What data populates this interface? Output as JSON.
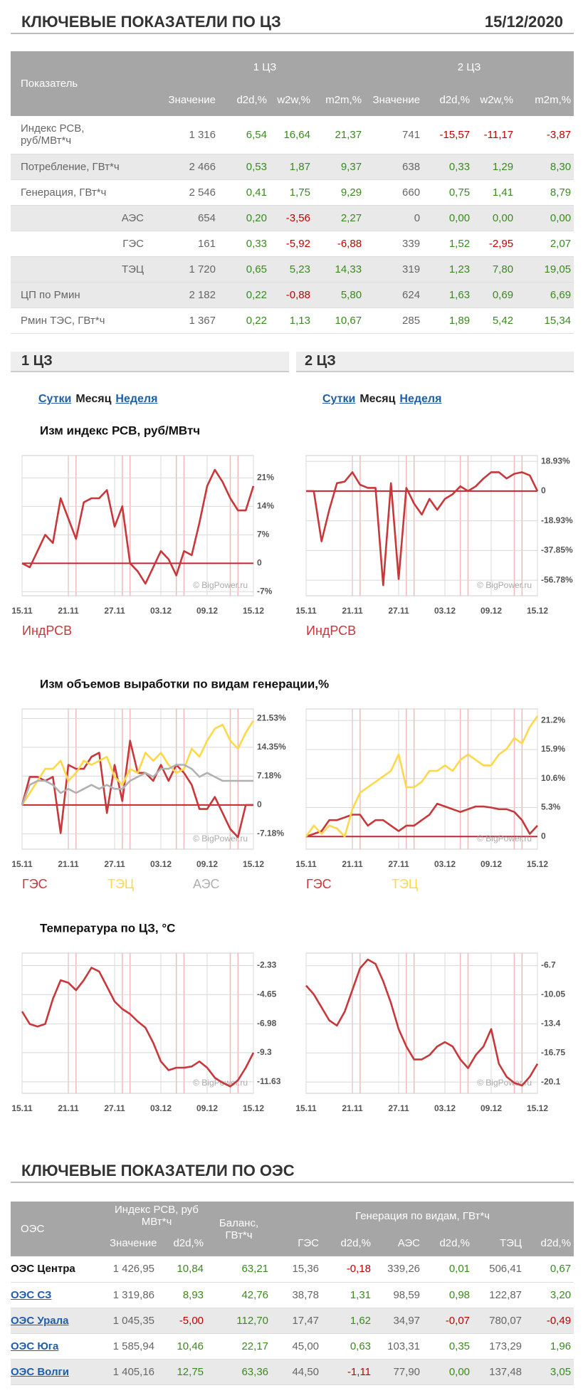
{
  "header": {
    "title": "КЛЮЧЕВЫЕ ПОКАЗАТЕЛИ ПО ЦЗ",
    "date": "15/12/2020"
  },
  "table1": {
    "top": [
      "Показатель",
      "1 ЦЗ",
      "2 ЦЗ"
    ],
    "columns": [
      "Значение",
      "d2d,%",
      "w2w,%",
      "m2m,%",
      "Значение",
      "d2d,%",
      "w2w,%",
      "m2m,%"
    ],
    "rows": [
      {
        "label": "Индекс РСВ,\nруб/МВт*ч",
        "values": [
          "1 316",
          "6,54",
          "16,64",
          "21,37",
          "741",
          "-15,57",
          "-11,17",
          "-3,87"
        ]
      },
      {
        "label": "Потребление, ГВт*ч",
        "values": [
          "2 466",
          "0,53",
          "1,87",
          "9,37",
          "638",
          "0,33",
          "1,29",
          "8,30"
        ]
      },
      {
        "label": "Генерация, ГВт*ч",
        "values": [
          "2 546",
          "0,41",
          "1,75",
          "9,29",
          "660",
          "0,75",
          "1,41",
          "8,79"
        ]
      },
      {
        "label": "АЭС",
        "sub": true,
        "values": [
          "654",
          "0,20",
          "-3,56",
          "2,27",
          "0",
          "0,00",
          "0,00",
          "0,00"
        ]
      },
      {
        "label": "ГЭС",
        "sub": true,
        "values": [
          "161",
          "0,33",
          "-5,92",
          "-6,88",
          "339",
          "1,52",
          "-2,95",
          "2,07"
        ]
      },
      {
        "label": "ТЭЦ",
        "sub": true,
        "values": [
          "1 720",
          "0,65",
          "5,23",
          "14,33",
          "319",
          "1,23",
          "7,80",
          "19,05"
        ]
      },
      {
        "label": "ЦП по Рмин",
        "values": [
          "2 182",
          "0,22",
          "-0,88",
          "5,80",
          "624",
          "1,63",
          "0,69",
          "6,69"
        ]
      },
      {
        "label": "Рмин ТЭС, ГВт*ч",
        "values": [
          "1 367",
          "0,22",
          "1,13",
          "10,67",
          "285",
          "1,89",
          "5,42",
          "15,34"
        ]
      }
    ]
  },
  "zones": [
    {
      "title": "1 ЦЗ",
      "tabs": [
        "Сутки",
        "Месяц",
        "Неделя"
      ]
    },
    {
      "title": "2 ЦЗ",
      "tabs": [
        "Сутки",
        "Месяц",
        "Неделя"
      ]
    }
  ],
  "chart_sections": [
    "Изм индекс РСВ, руб/МВтч",
    "Изм объемов выработки по видам генерации,%",
    "Температура по ЦЗ, °C"
  ],
  "chart_data": [
    {
      "type": "line",
      "watermark": "© BigPower.ru",
      "zero_line_color": "#c0282d",
      "categories": [
        "15.11",
        null,
        null,
        null,
        null,
        null,
        "21.11",
        null,
        null,
        null,
        null,
        null,
        "27.11",
        null,
        null,
        null,
        null,
        null,
        "03.12",
        null,
        null,
        null,
        null,
        null,
        "09.12",
        null,
        null,
        null,
        null,
        null,
        "15.12"
      ],
      "series": [
        {
          "name": "ИндРСВ",
          "color": "#c8373a",
          "values": [
            0,
            -1,
            3,
            7,
            5,
            16,
            11,
            6,
            15,
            16,
            16,
            18,
            9,
            14,
            0,
            -2,
            -5,
            -1,
            3,
            1,
            -3,
            3,
            2,
            10,
            19,
            23,
            20,
            16,
            13,
            13,
            19
          ]
        }
      ],
      "ylim": [
        -8,
        26.5
      ],
      "yticks": [
        {
          "value": 21,
          "label": "21%"
        },
        {
          "value": 14,
          "label": "14%"
        },
        {
          "value": 7,
          "label": "7%"
        },
        0,
        {
          "value": -7,
          "label": "-7%"
        }
      ]
    },
    {
      "type": "line",
      "watermark": "© BigPower.ru",
      "zero_line_color": "#c0282d",
      "categories": [
        "15.11",
        null,
        null,
        null,
        null,
        null,
        "21.11",
        null,
        null,
        null,
        null,
        null,
        "27.11",
        null,
        null,
        null,
        null,
        null,
        "03.12",
        null,
        null,
        null,
        null,
        null,
        "09.12",
        null,
        null,
        null,
        null,
        null,
        "15.12"
      ],
      "series": [
        {
          "name": "ИндРСВ",
          "color": "#c8373a",
          "values": [
            0,
            0,
            -32,
            -12,
            5,
            6,
            12,
            4,
            2,
            2,
            -60,
            5,
            -56,
            2,
            -8,
            -15,
            -5,
            -12,
            -5,
            -2,
            3,
            0,
            3,
            8,
            12,
            12,
            8,
            11,
            12,
            10,
            0
          ]
        }
      ],
      "ylim": [
        -66.7,
        22.6
      ],
      "yticks": [
        {
          "value": 18.93,
          "label": "18.93%"
        },
        0,
        {
          "value": -18.93,
          "label": "-18.93%"
        },
        {
          "value": -37.85,
          "label": "-37.85%"
        },
        {
          "value": -56.78,
          "label": "-56.78%"
        }
      ]
    },
    {
      "type": "line",
      "watermark": "© BigPower.ru",
      "zero_line_color": "#c0282d",
      "categories": [
        "15.11",
        null,
        null,
        null,
        null,
        null,
        "21.11",
        null,
        null,
        null,
        null,
        null,
        "27.11",
        null,
        null,
        null,
        null,
        null,
        "03.12",
        null,
        null,
        null,
        null,
        null,
        "09.12",
        null,
        null,
        null,
        null,
        null,
        "15.12"
      ],
      "series": [
        {
          "name": "ГЭС",
          "color": "#c8373a",
          "values": [
            0,
            7,
            7,
            6,
            7,
            -7,
            10,
            9,
            9,
            12,
            13,
            -2,
            10,
            1,
            16,
            8,
            8,
            6,
            10,
            6,
            10,
            8,
            5,
            -1,
            -1,
            2,
            -2,
            -6,
            -8,
            0,
            0
          ]
        },
        {
          "name": "ТЭЦ",
          "color": "#ffd84a",
          "values": [
            0,
            3,
            6,
            9,
            9,
            11,
            6,
            8,
            11,
            10,
            11,
            12,
            7,
            5,
            9,
            8,
            13,
            11,
            13,
            10,
            8,
            9,
            14,
            12,
            16,
            19,
            20,
            16,
            14,
            18,
            21
          ]
        },
        {
          "name": "АЭС",
          "color": "#b0b0b0",
          "values": [
            0,
            5,
            6,
            6,
            5,
            3,
            4,
            3,
            4,
            5,
            4,
            5,
            4,
            4,
            6,
            7,
            8,
            7,
            9,
            9,
            10,
            10,
            9,
            7,
            8,
            7,
            6,
            6,
            6,
            6,
            6
          ]
        }
      ],
      "ylim": [
        -11,
        23.9
      ],
      "yticks": [
        {
          "value": 21.53,
          "label": "21.53%"
        },
        {
          "value": 14.35,
          "label": "14.35%"
        },
        {
          "value": 7.18,
          "label": "7.18%"
        },
        0,
        {
          "value": -7.18,
          "label": "-7.18%"
        }
      ]
    },
    {
      "type": "line",
      "watermark": "© BigPower.ru",
      "zero_line_color": "#c0282d",
      "categories": [
        "15.11",
        null,
        null,
        null,
        null,
        null,
        "21.11",
        null,
        null,
        null,
        null,
        null,
        "27.11",
        null,
        null,
        null,
        null,
        null,
        "03.12",
        null,
        null,
        null,
        null,
        null,
        "09.12",
        null,
        null,
        null,
        null,
        null,
        "15.12"
      ],
      "series": [
        {
          "name": "ГЭС",
          "color": "#c8373a",
          "values": [
            0,
            0.5,
            1,
            3,
            3,
            3.5,
            4,
            4,
            2,
            3,
            3,
            2,
            1,
            2,
            2,
            3,
            4,
            6,
            5.5,
            5,
            4.5,
            5,
            5.5,
            5.5,
            5.3,
            5,
            5,
            4.5,
            3,
            0.5,
            2
          ]
        },
        {
          "name": "ТЭЦ",
          "color": "#ffd84a",
          "values": [
            0,
            2,
            0.5,
            2,
            1.5,
            0,
            5,
            8,
            9,
            10,
            11,
            12,
            15,
            9,
            9,
            10,
            12,
            12,
            13,
            12,
            14,
            15,
            14,
            13,
            13,
            15,
            16,
            18,
            17,
            20,
            22
          ]
        }
      ],
      "ylim": [
        -2.3,
        23.3
      ],
      "yticks": [
        {
          "value": 21.2,
          "label": "21.2%"
        },
        {
          "value": 15.9,
          "label": "15.9%"
        },
        {
          "value": 10.6,
          "label": "10.6%"
        },
        {
          "value": 5.3,
          "label": "5.3%"
        },
        0
      ]
    },
    {
      "type": "line",
      "watermark": "© BigPower.ru",
      "categories": [
        "15.11",
        null,
        null,
        null,
        null,
        null,
        "21.11",
        null,
        null,
        null,
        null,
        null,
        "27.11",
        null,
        null,
        null,
        null,
        null,
        "03.12",
        null,
        null,
        null,
        null,
        null,
        "09.12",
        null,
        null,
        null,
        null,
        null,
        "15.12"
      ],
      "series": [
        {
          "color": "#c8373a",
          "values": [
            -6,
            -7,
            -7.2,
            -7,
            -5,
            -3.5,
            -3.7,
            -4.3,
            -3.5,
            -2.5,
            -2.8,
            -4,
            -5.2,
            -5.8,
            -6.2,
            -6.8,
            -7.3,
            -8.5,
            -10,
            -10.7,
            -10.5,
            -10.5,
            -10.4,
            -10,
            -10.5,
            -11.3,
            -11.7,
            -12,
            -11.5,
            -10.5,
            -9.3
          ]
        }
      ],
      "ylim": [
        -12.55,
        -1.33
      ],
      "yticks": [
        -2.33,
        -4.65,
        -6.98,
        -9.3,
        -11.63
      ]
    },
    {
      "type": "line",
      "watermark": "© BigPower.ru",
      "categories": [
        "15.11",
        null,
        null,
        null,
        null,
        null,
        "21.11",
        null,
        null,
        null,
        null,
        null,
        "27.11",
        null,
        null,
        null,
        null,
        null,
        "03.12",
        null,
        null,
        null,
        null,
        null,
        "09.12",
        null,
        null,
        null,
        null,
        null,
        "15.12"
      ],
      "series": [
        {
          "color": "#c8373a",
          "values": [
            -9,
            -10,
            -11.5,
            -13,
            -13.6,
            -12,
            -9.5,
            -7,
            -6,
            -6.5,
            -8.5,
            -11,
            -14,
            -16,
            -17.5,
            -17.5,
            -17,
            -16,
            -15.5,
            -16,
            -17.5,
            -18.5,
            -17,
            -16,
            -14,
            -18,
            -19.5,
            -20.2,
            -20.5,
            -19.5,
            -18
          ]
        }
      ],
      "ylim": [
        -21.4,
        -5.26
      ],
      "yticks": [
        -6.7,
        -10.05,
        -13.4,
        -16.75,
        -20.1
      ]
    }
  ],
  "section2": {
    "title": "КЛЮЧЕВЫЕ ПОКАЗАТЕЛИ ПО ОЭС"
  },
  "table2": {
    "oes": "ОЭС",
    "index": "Индекс РСВ, руб\nМВт*ч",
    "balance": "Баланс,\nГВт*ч",
    "gen": "Генерация по видам, ГВт*ч",
    "sub": [
      "Значение",
      "d2d,%",
      "ГЭС",
      "d2d,%",
      "АЭС",
      "d2d,%",
      "ТЭЦ",
      "d2d,%"
    ],
    "rows": [
      {
        "name": "ОЭС Центра",
        "link": false,
        "values": [
          "1 426,95",
          "10,84",
          "63,21",
          "15,36",
          "-0,18",
          "339,26",
          "0,01",
          "506,41",
          "0,67"
        ]
      },
      {
        "name": "ОЭС СЗ",
        "link": true,
        "values": [
          "1 319,86",
          "8,93",
          "42,76",
          "38,78",
          "1,31",
          "98,59",
          "0,98",
          "122,87",
          "3,20"
        ]
      },
      {
        "name": "ОЭС Урала",
        "link": true,
        "values": [
          "1 045,35",
          "-5,00",
          "112,70",
          "17,47",
          "1,62",
          "34,97",
          "-0,07",
          "780,07",
          "-0,49"
        ]
      },
      {
        "name": "ОЭС Юга",
        "link": true,
        "values": [
          "1 585,94",
          "10,46",
          "22,17",
          "45,00",
          "0,63",
          "103,31",
          "0,35",
          "173,29",
          "1,96"
        ]
      },
      {
        "name": "ОЭС Волги",
        "link": true,
        "values": [
          "1 405,16",
          "12,75",
          "63,36",
          "44,50",
          "-1,11",
          "77,90",
          "0,00",
          "137,48",
          "3,05"
        ]
      }
    ]
  }
}
